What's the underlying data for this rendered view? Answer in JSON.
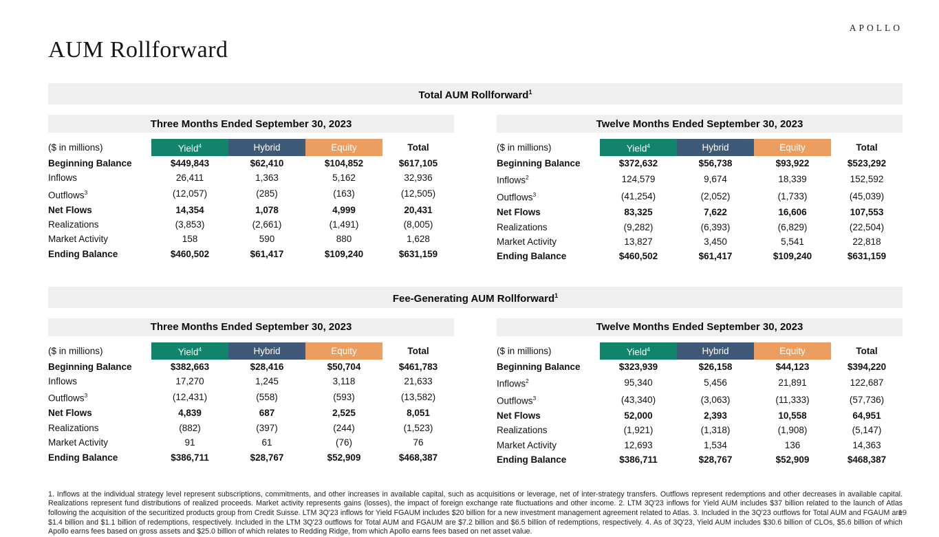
{
  "logo": "APOLLO",
  "title": "AUM Rollforward",
  "page_number": "19",
  "unit_label": "($ in millions)",
  "colors": {
    "yield_green": "#12846B",
    "hybrid_blue": "#3E5A78",
    "equity_orange": "#EC9D60",
    "banner_gray": "#efefef"
  },
  "column_headers": [
    {
      "label": "Yield",
      "sup": "4",
      "bg": "#12846B",
      "fg": "#ffffff"
    },
    {
      "label": "Hybrid",
      "sup": "",
      "bg": "#3E5A78",
      "fg": "#ffffff"
    },
    {
      "label": "Equity",
      "sup": "",
      "bg": "#EC9D60",
      "fg": "#ffffff"
    },
    {
      "label": "Total",
      "sup": "",
      "bg": "",
      "fg": "#000000"
    }
  ],
  "sections": [
    {
      "id": "total-aum",
      "banner": "Total AUM Rollforward",
      "banner_sup": "1",
      "tables": [
        {
          "id": "total-3m",
          "period": "Three Months Ended September 30, 2023",
          "rows": [
            {
              "label": "Beginning Balance",
              "sup": "",
              "bold": true,
              "values": [
                "$449,843",
                "$62,410",
                "$104,852",
                "$617,105"
              ]
            },
            {
              "label": "Inflows",
              "sup": "",
              "bold": false,
              "values": [
                "26,411",
                "1,363",
                "5,162",
                "32,936"
              ]
            },
            {
              "label": "Outflows",
              "sup": "3",
              "bold": false,
              "values": [
                "(12,057)",
                "(285)",
                "(163)",
                "(12,505)"
              ]
            },
            {
              "label": "Net Flows",
              "sup": "",
              "bold": true,
              "values": [
                "14,354",
                "1,078",
                "4,999",
                "20,431"
              ]
            },
            {
              "label": "Realizations",
              "sup": "",
              "bold": false,
              "values": [
                "(3,853)",
                "(2,661)",
                "(1,491)",
                "(8,005)"
              ]
            },
            {
              "label": "Market Activity",
              "sup": "",
              "bold": false,
              "values": [
                "158",
                "590",
                "880",
                "1,628"
              ]
            },
            {
              "label": "Ending Balance",
              "sup": "",
              "bold": true,
              "values": [
                "$460,502",
                "$61,417",
                "$109,240",
                "$631,159"
              ]
            }
          ]
        },
        {
          "id": "total-ltm",
          "period": "Twelve Months Ended September 30, 2023",
          "rows": [
            {
              "label": "Beginning Balance",
              "sup": "",
              "bold": true,
              "values": [
                "$372,632",
                "$56,738",
                "$93,922",
                "$523,292"
              ]
            },
            {
              "label": "Inflows",
              "sup": "2",
              "bold": false,
              "values": [
                "124,579",
                "9,674",
                "18,339",
                "152,592"
              ]
            },
            {
              "label": "Outflows",
              "sup": "3",
              "bold": false,
              "values": [
                "(41,254)",
                "(2,052)",
                "(1,733)",
                "(45,039)"
              ]
            },
            {
              "label": "Net Flows",
              "sup": "",
              "bold": true,
              "values": [
                "83,325",
                "7,622",
                "16,606",
                "107,553"
              ]
            },
            {
              "label": "Realizations",
              "sup": "",
              "bold": false,
              "values": [
                "(9,282)",
                "(6,393)",
                "(6,829)",
                "(22,504)"
              ]
            },
            {
              "label": "Market Activity",
              "sup": "",
              "bold": false,
              "values": [
                "13,827",
                "3,450",
                "5,541",
                "22,818"
              ]
            },
            {
              "label": "Ending Balance",
              "sup": "",
              "bold": true,
              "values": [
                "$460,502",
                "$61,417",
                "$109,240",
                "$631,159"
              ]
            }
          ]
        }
      ]
    },
    {
      "id": "fee-generating-aum",
      "banner": "Fee-Generating AUM Rollforward",
      "banner_sup": "1",
      "tables": [
        {
          "id": "fg-3m",
          "period": "Three Months Ended September 30, 2023",
          "rows": [
            {
              "label": "Beginning Balance",
              "sup": "",
              "bold": true,
              "values": [
                "$382,663",
                "$28,416",
                "$50,704",
                "$461,783"
              ]
            },
            {
              "label": "Inflows",
              "sup": "",
              "bold": false,
              "values": [
                "17,270",
                "1,245",
                "3,118",
                "21,633"
              ]
            },
            {
              "label": "Outflows",
              "sup": "3",
              "bold": false,
              "values": [
                "(12,431)",
                "(558)",
                "(593)",
                "(13,582)"
              ]
            },
            {
              "label": "Net Flows",
              "sup": "",
              "bold": true,
              "values": [
                "4,839",
                "687",
                "2,525",
                "8,051"
              ]
            },
            {
              "label": "Realizations",
              "sup": "",
              "bold": false,
              "values": [
                "(882)",
                "(397)",
                "(244)",
                "(1,523)"
              ]
            },
            {
              "label": "Market Activity",
              "sup": "",
              "bold": false,
              "values": [
                "91",
                "61",
                "(76)",
                "76"
              ]
            },
            {
              "label": "Ending Balance",
              "sup": "",
              "bold": true,
              "values": [
                "$386,711",
                "$28,767",
                "$52,909",
                "$468,387"
              ]
            }
          ]
        },
        {
          "id": "fg-ltm",
          "period": "Twelve Months Ended September 30, 2023",
          "rows": [
            {
              "label": "Beginning Balance",
              "sup": "",
              "bold": true,
              "values": [
                "$323,939",
                "$26,158",
                "$44,123",
                "$394,220"
              ]
            },
            {
              "label": "Inflows",
              "sup": "2",
              "bold": false,
              "values": [
                "95,340",
                "5,456",
                "21,891",
                "122,687"
              ]
            },
            {
              "label": "Outflows",
              "sup": "3",
              "bold": false,
              "values": [
                "(43,340)",
                "(3,063)",
                "(11,333)",
                "(57,736)"
              ]
            },
            {
              "label": "Net Flows",
              "sup": "",
              "bold": true,
              "values": [
                "52,000",
                "2,393",
                "10,558",
                "64,951"
              ]
            },
            {
              "label": "Realizations",
              "sup": "",
              "bold": false,
              "values": [
                "(1,921)",
                "(1,318)",
                "(1,908)",
                "(5,147)"
              ]
            },
            {
              "label": "Market Activity",
              "sup": "",
              "bold": false,
              "values": [
                "12,693",
                "1,534",
                "136",
                "14,363"
              ]
            },
            {
              "label": "Ending Balance",
              "sup": "",
              "bold": true,
              "values": [
                "$386,711",
                "$28,767",
                "$52,909",
                "$468,387"
              ]
            }
          ]
        }
      ]
    }
  ],
  "footnote": "1. Inflows at the individual strategy level represent subscriptions, commitments, and other increases in available capital, such as acquisitions or leverage, net of inter-strategy transfers. Outflows represent redemptions and other decreases in available capital. Realizations represent fund distributions of realized proceeds. Market activity represents gains (losses), the impact of foreign exchange rate fluctuations and other income. 2. LTM 3Q'23 inflows for Yield AUM includes $37 billion related to the launch of Atlas following the acquisition of the securitized products group from Credit Suisse. LTM 3Q'23 inflows for Yield FGAUM includes $20 billion for a new investment management agreement related to Atlas. 3. Included in the 3Q'23 outflows for Total AUM and FGAUM are $1.4 billion and $1.1 billion of redemptions, respectively. Included in the LTM 3Q'23 outflows for Total AUM and FGAUM are $7.2 billion and $6.5 billion of redemptions, respectively. 4. As of 3Q'23, Yield AUM includes $30.6 billion of CLOs, $5.6 billion of which Apollo earns fees based on gross assets and $25.0 billion of which relates to Redding Ridge, from which Apollo earns fees based on net asset value.",
  "footnote_ref": "1"
}
